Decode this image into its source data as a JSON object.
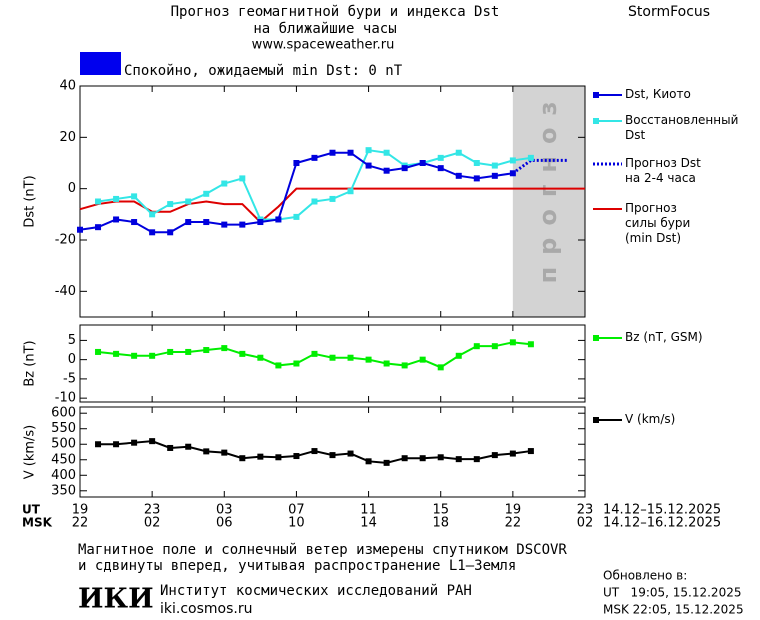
{
  "header": {
    "title_line1": "Прогноз геомагнитной бури и индекса Dst",
    "title_line2": "на ближайшие часы",
    "url": "www.spaceweather.ru",
    "brand": "StormFocus",
    "status_text": "Спокойно, ожидаемый min Dst: 0 nT",
    "status_color": "#0000ee"
  },
  "chart_data": [
    {
      "type": "line",
      "y_label": "Dst (nT)",
      "xlim": [
        0,
        28
      ],
      "ylim": [
        -50,
        40
      ],
      "yticks": [
        -40,
        -20,
        0,
        20,
        40
      ],
      "forecast": {
        "xrange": [
          24,
          28
        ],
        "label": "прогноз",
        "color": "#d3d3d3"
      },
      "series": [
        {
          "name": "Dst, Киото",
          "color": "#0000dd",
          "line": "solid",
          "marker": "square",
          "x": [
            0,
            1,
            2,
            3,
            4,
            5,
            6,
            7,
            8,
            9,
            10,
            11,
            12,
            13,
            14,
            15,
            16,
            17,
            18,
            19,
            20,
            21,
            22,
            23,
            24
          ],
          "values": [
            -16,
            -15,
            -12,
            -13,
            -17,
            -17,
            -13,
            -13,
            -14,
            -14,
            -13,
            -12,
            10,
            12,
            14,
            14,
            9,
            7,
            8,
            10,
            8,
            5,
            4,
            5,
            6
          ]
        },
        {
          "name": "Восстановленный\nDst",
          "color": "#33e6e6",
          "line": "solid",
          "marker": "square",
          "x": [
            1,
            2,
            3,
            4,
            5,
            6,
            7,
            8,
            9,
            10,
            11,
            12,
            13,
            14,
            15,
            16,
            17,
            18,
            19,
            20,
            21,
            22,
            23,
            24,
            25
          ],
          "values": [
            -5,
            -4,
            -3,
            -10,
            -6,
            -5,
            -2,
            2,
            4,
            -12,
            -12,
            -11,
            -5,
            -4,
            -1,
            15,
            14,
            9,
            10,
            12,
            14,
            10,
            9,
            11,
            12
          ]
        },
        {
          "name": "Прогноз Dst\nна 2-4 часа",
          "color": "#0000dd",
          "line": "dotted",
          "marker": "none",
          "x": [
            24,
            25,
            26,
            27
          ],
          "values": [
            6,
            11,
            11,
            11
          ]
        },
        {
          "name": "Прогноз\nсилы бури\n(min Dst)",
          "color": "#dd0000",
          "line": "solid",
          "marker": "none",
          "x": [
            0,
            1,
            2,
            3,
            4,
            5,
            6,
            7,
            8,
            9,
            10,
            11,
            12,
            28
          ],
          "values": [
            -8,
            -6,
            -5,
            -5,
            -9,
            -9,
            -6,
            -5,
            -6,
            -6,
            -13,
            -7,
            0,
            0
          ]
        }
      ]
    },
    {
      "type": "line",
      "y_label": "Bz (nT)",
      "xlim": [
        0,
        28
      ],
      "ylim": [
        -11,
        9
      ],
      "yticks": [
        -10,
        -5,
        0,
        5
      ],
      "series": [
        {
          "name": "Bz (nT, GSM)",
          "color": "#00ee00",
          "line": "solid",
          "marker": "square",
          "x": [
            1,
            2,
            3,
            4,
            5,
            6,
            7,
            8,
            9,
            10,
            11,
            12,
            13,
            14,
            15,
            16,
            17,
            18,
            19,
            20,
            21,
            22,
            23,
            24,
            25
          ],
          "values": [
            2,
            1.5,
            1,
            1,
            2,
            2,
            2.5,
            3,
            1.5,
            0.5,
            -1.5,
            -1,
            1.5,
            0.5,
            0.5,
            0,
            -1,
            -1.5,
            0,
            -2,
            1,
            3.5,
            3.5,
            4.5,
            4
          ]
        }
      ]
    },
    {
      "type": "line",
      "y_label": "V (km/s)",
      "xlim": [
        0,
        28
      ],
      "ylim": [
        330,
        620
      ],
      "yticks": [
        350,
        400,
        450,
        500,
        550,
        600
      ],
      "x_label": "UT",
      "x2_label": "MSK",
      "x_range_label": "14.12–15.12.2025",
      "x2_range_label": "14.12–16.12.2025",
      "xticks": [
        {
          "value": 0,
          "label": "19"
        },
        {
          "value": 4,
          "label": "23"
        },
        {
          "value": 8,
          "label": "03"
        },
        {
          "value": 12,
          "label": "07"
        },
        {
          "value": 16,
          "label": "11"
        },
        {
          "value": 20,
          "label": "15"
        },
        {
          "value": 24,
          "label": "19"
        },
        {
          "value": 28,
          "label": "23"
        }
      ],
      "x2ticks": [
        {
          "value": 0,
          "label": "22"
        },
        {
          "value": 4,
          "label": "02"
        },
        {
          "value": 8,
          "label": "06"
        },
        {
          "value": 12,
          "label": "10"
        },
        {
          "value": 16,
          "label": "14"
        },
        {
          "value": 20,
          "label": "18"
        },
        {
          "value": 24,
          "label": "22"
        },
        {
          "value": 28,
          "label": "02"
        }
      ],
      "series": [
        {
          "name": "V (km/s)",
          "color": "#000000",
          "line": "solid",
          "marker": "square",
          "x": [
            1,
            2,
            3,
            4,
            5,
            6,
            7,
            8,
            9,
            10,
            11,
            12,
            13,
            14,
            15,
            16,
            17,
            18,
            19,
            20,
            21,
            22,
            23,
            24,
            25
          ],
          "values": [
            500,
            500,
            505,
            510,
            488,
            492,
            477,
            473,
            455,
            460,
            458,
            462,
            478,
            465,
            470,
            445,
            440,
            455,
            455,
            458,
            452,
            452,
            465,
            470,
            478
          ]
        }
      ]
    }
  ],
  "footer": {
    "note_line1": "Магнитное поле и солнечный ветер измерены спутником DSCOVR",
    "note_line2": "и сдвинуты вперед, учитывая распространение L1–Земля",
    "logo": "ИКИ",
    "institute": "Институт космических исследований РАН",
    "institute_url": "iki.cosmos.ru",
    "updated_label": "Обновлено в:",
    "updated_ut": "UT   19:05, 15.12.2025",
    "updated_msk": "MSK 22:05, 15.12.2025"
  }
}
